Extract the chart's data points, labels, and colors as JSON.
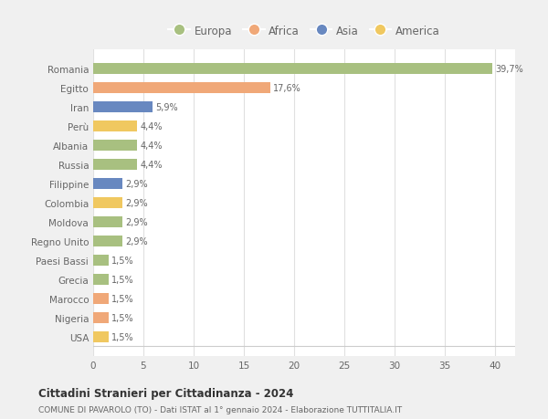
{
  "countries": [
    "Romania",
    "Egitto",
    "Iran",
    "Perù",
    "Albania",
    "Russia",
    "Filippine",
    "Colombia",
    "Moldova",
    "Regno Unito",
    "Paesi Bassi",
    "Grecia",
    "Marocco",
    "Nigeria",
    "USA"
  ],
  "values": [
    39.7,
    17.6,
    5.9,
    4.4,
    4.4,
    4.4,
    2.9,
    2.9,
    2.9,
    2.9,
    1.5,
    1.5,
    1.5,
    1.5,
    1.5
  ],
  "labels": [
    "39,7%",
    "17,6%",
    "5,9%",
    "4,4%",
    "4,4%",
    "4,4%",
    "2,9%",
    "2,9%",
    "2,9%",
    "2,9%",
    "1,5%",
    "1,5%",
    "1,5%",
    "1,5%",
    "1,5%"
  ],
  "colors": [
    "#a8c080",
    "#f0a878",
    "#6888c0",
    "#f0c860",
    "#a8c080",
    "#a8c080",
    "#6888c0",
    "#f0c860",
    "#a8c080",
    "#a8c080",
    "#a8c080",
    "#a8c080",
    "#f0a878",
    "#f0a878",
    "#f0c860"
  ],
  "legend_labels": [
    "Europa",
    "Africa",
    "Asia",
    "America"
  ],
  "legend_colors": [
    "#a8c080",
    "#f0a878",
    "#6888c0",
    "#f0c860"
  ],
  "title": "Cittadini Stranieri per Cittadinanza - 2024",
  "subtitle": "COMUNE DI PAVAROLO (TO) - Dati ISTAT al 1° gennaio 2024 - Elaborazione TUTTITALIA.IT",
  "xlim": [
    0,
    42
  ],
  "xticks": [
    0,
    5,
    10,
    15,
    20,
    25,
    30,
    35,
    40
  ],
  "background_color": "#f0f0f0",
  "plot_bg_color": "#ffffff",
  "grid_color": "#e0e0e0",
  "text_color": "#666666",
  "title_color": "#333333",
  "bar_height": 0.55
}
